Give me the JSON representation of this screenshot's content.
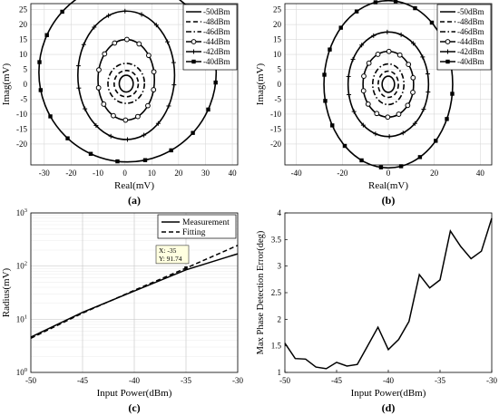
{
  "chart_data": [
    {
      "id": "a",
      "type": "line",
      "panel_label": "(a)",
      "xlabel": "Real(mV)",
      "ylabel": "Imag(mV)",
      "xlim": [
        -35,
        42
      ],
      "ylim": [
        -27,
        27
      ],
      "xticks": [
        -30,
        -20,
        -10,
        0,
        10,
        20,
        30,
        40
      ],
      "yticks": [
        -20,
        -15,
        -10,
        -5,
        0,
        5,
        10,
        15,
        20,
        25
      ],
      "grid": true,
      "legend_position": "top-right",
      "series": [
        {
          "name": "-50dBm",
          "center": [
            0.5,
            0.2
          ],
          "rx": 2.6,
          "ry": 2.8,
          "marker": "none",
          "dash": "solid"
        },
        {
          "name": "-48dBm",
          "center": [
            0.5,
            0.2
          ],
          "rx": 4.5,
          "ry": 4.4,
          "marker": "none",
          "dash": "dashed"
        },
        {
          "name": "-46dBm",
          "center": [
            0.5,
            0.3
          ],
          "rx": 6.8,
          "ry": 6.7,
          "marker": "none",
          "dash": "dashdot"
        },
        {
          "name": "-44dBm",
          "center": [
            0.5,
            1.5
          ],
          "rx": 10.5,
          "ry": 13.5,
          "marker": "circle",
          "dash": "solid"
        },
        {
          "name": "-42dBm",
          "center": [
            0.5,
            3.0
          ],
          "rx": 18.0,
          "ry": 21.5,
          "marker": "plus",
          "dash": "solid"
        },
        {
          "name": "-40dBm",
          "center": [
            1.0,
            4.0
          ],
          "rx": 33.0,
          "ry": 30.0,
          "marker": "square",
          "dash": "solid"
        }
      ]
    },
    {
      "id": "b",
      "type": "line",
      "panel_label": "(b)",
      "xlabel": "Real(mV)",
      "ylabel": "Imag(mV)",
      "xlim": [
        -45,
        45
      ],
      "ylim": [
        -27,
        27
      ],
      "xticks": [
        -40,
        -20,
        0,
        20,
        40
      ],
      "yticks": [
        -20,
        -15,
        -10,
        -5,
        0,
        5,
        10,
        15,
        20,
        25
      ],
      "grid": true,
      "legend_position": "top-right",
      "series": [
        {
          "name": "-50dBm",
          "center": [
            0,
            0
          ],
          "rx": 2.7,
          "ry": 2.7,
          "marker": "none",
          "dash": "solid"
        },
        {
          "name": "-48dBm",
          "center": [
            0,
            0
          ],
          "rx": 4.4,
          "ry": 4.4,
          "marker": "none",
          "dash": "dashed"
        },
        {
          "name": "-46dBm",
          "center": [
            0,
            0
          ],
          "rx": 6.8,
          "ry": 6.8,
          "marker": "none",
          "dash": "dashdot"
        },
        {
          "name": "-44dBm",
          "center": [
            0,
            0
          ],
          "rx": 11.0,
          "ry": 11.0,
          "marker": "circle",
          "dash": "solid"
        },
        {
          "name": "-42dBm",
          "center": [
            0,
            0
          ],
          "rx": 17.5,
          "ry": 17.5,
          "marker": "plus",
          "dash": "solid"
        },
        {
          "name": "-40dBm",
          "center": [
            0,
            0
          ],
          "rx": 28.0,
          "ry": 28.0,
          "marker": "square",
          "dash": "solid"
        }
      ]
    },
    {
      "id": "c",
      "type": "line",
      "panel_label": "(c)",
      "xlabel": "Input Power(dBm)",
      "ylabel": "Radius(mV)",
      "xlim": [
        -50,
        -30
      ],
      "ylim": [
        1,
        1000
      ],
      "yscale": "log",
      "xticks": [
        -50,
        -45,
        -40,
        -35,
        -30
      ],
      "ytick_labels": [
        "10^0",
        "10^1",
        "10^2",
        "10^3"
      ],
      "grid": true,
      "legend_position": "top-right",
      "series": [
        {
          "name": "Measurement",
          "dash": "solid",
          "x": [
            -50,
            -45,
            -40,
            -35,
            -30
          ],
          "y": [
            4.6,
            13.5,
            34,
            85,
            170
          ]
        },
        {
          "name": "Fitting",
          "dash": "dashed",
          "x": [
            -50,
            -45,
            -40,
            -35,
            -30
          ],
          "y": [
            4.4,
            13.0,
            35,
            91.74,
            245
          ]
        }
      ],
      "datatip": {
        "x": -35,
        "y": 91.74,
        "line1": "X: -35",
        "line2": "Y: 91.74"
      }
    },
    {
      "id": "d",
      "type": "line",
      "panel_label": "(d)",
      "xlabel": "Input Power(dBm)",
      "ylabel": "Max Phase Detection Error(deg)",
      "xlim": [
        -50,
        -30
      ],
      "ylim": [
        1,
        4
      ],
      "xticks": [
        -50,
        -45,
        -40,
        -35,
        -30
      ],
      "yticks": [
        1,
        1.5,
        2,
        2.5,
        3,
        3.5,
        4
      ],
      "grid": false,
      "series": [
        {
          "dash": "solid",
          "x": [
            -50,
            -49,
            -48,
            -47,
            -46,
            -45,
            -44,
            -43,
            -42,
            -41,
            -40,
            -39,
            -38,
            -37,
            -36,
            -35,
            -34,
            -33,
            -32,
            -31,
            -30
          ],
          "y": [
            1.55,
            1.26,
            1.25,
            1.1,
            1.07,
            1.19,
            1.12,
            1.15,
            1.5,
            1.85,
            1.43,
            1.62,
            1.96,
            2.84,
            2.59,
            2.74,
            3.66,
            3.37,
            3.14,
            3.28,
            3.9
          ]
        }
      ]
    }
  ]
}
